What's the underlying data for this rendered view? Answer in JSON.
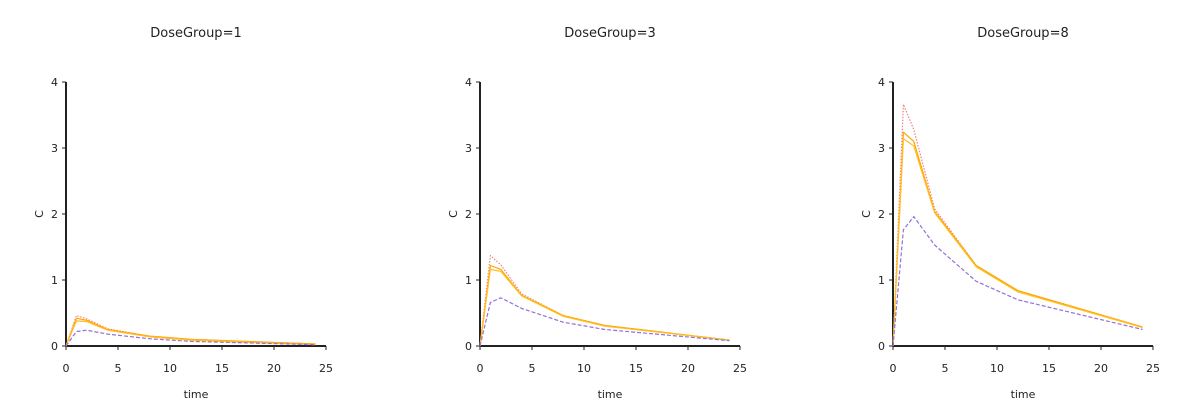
{
  "chart_data": [
    {
      "type": "line",
      "title": "DoseGroup=1",
      "xlabel": "time",
      "ylabel": "C",
      "xlim": [
        0,
        25
      ],
      "ylim": [
        0,
        4
      ],
      "xticks": [
        "0",
        "5",
        "10",
        "15",
        "20",
        "25"
      ],
      "yticks": [
        "0",
        "1",
        "2",
        "3",
        "4"
      ],
      "grid": false,
      "series": [
        {
          "color": "#f08080",
          "style": "dotted",
          "x": [
            0,
            1,
            2,
            4,
            8,
            12,
            24
          ],
          "y": [
            0,
            0.46,
            0.41,
            0.26,
            0.15,
            0.1,
            0.03
          ]
        },
        {
          "color": "#ffa500",
          "style": "solid",
          "x": [
            0,
            1,
            2,
            4,
            8,
            12,
            24
          ],
          "y": [
            0,
            0.42,
            0.39,
            0.25,
            0.15,
            0.1,
            0.03
          ]
        },
        {
          "color": "#ffc020",
          "style": "solid",
          "x": [
            0,
            1,
            2,
            4,
            8,
            12,
            24
          ],
          "y": [
            0,
            0.38,
            0.37,
            0.24,
            0.14,
            0.09,
            0.02
          ]
        },
        {
          "color": "#9370db",
          "style": "dashed",
          "x": [
            0,
            1,
            2,
            4,
            8,
            12,
            24
          ],
          "y": [
            0,
            0.22,
            0.24,
            0.18,
            0.11,
            0.07,
            0.02
          ]
        }
      ]
    },
    {
      "type": "line",
      "title": "DoseGroup=3",
      "xlabel": "time",
      "ylabel": "C",
      "xlim": [
        0,
        25
      ],
      "ylim": [
        0,
        4
      ],
      "xticks": [
        "0",
        "5",
        "10",
        "15",
        "20",
        "25"
      ],
      "yticks": [
        "0",
        "1",
        "2",
        "3",
        "4"
      ],
      "grid": false,
      "series": [
        {
          "color": "#f08080",
          "style": "dotted",
          "x": [
            0,
            1,
            2,
            4,
            8,
            12,
            24
          ],
          "y": [
            0,
            1.37,
            1.23,
            0.79,
            0.46,
            0.31,
            0.09
          ]
        },
        {
          "color": "#ffa500",
          "style": "solid",
          "x": [
            0,
            1,
            2,
            4,
            8,
            12,
            24
          ],
          "y": [
            0,
            1.22,
            1.16,
            0.77,
            0.46,
            0.31,
            0.09
          ]
        },
        {
          "color": "#ffc020",
          "style": "solid",
          "x": [
            0,
            1,
            2,
            4,
            8,
            12,
            24
          ],
          "y": [
            0,
            1.16,
            1.13,
            0.76,
            0.45,
            0.3,
            0.09
          ]
        },
        {
          "color": "#9370db",
          "style": "dashed",
          "x": [
            0,
            1,
            2,
            4,
            8,
            12,
            24
          ],
          "y": [
            0,
            0.66,
            0.73,
            0.57,
            0.36,
            0.25,
            0.08
          ]
        }
      ]
    },
    {
      "type": "line",
      "title": "DoseGroup=8",
      "xlabel": "time",
      "ylabel": "C",
      "xlim": [
        0,
        25
      ],
      "ylim": [
        0,
        4
      ],
      "xticks": [
        "0",
        "5",
        "10",
        "15",
        "20",
        "25"
      ],
      "yticks": [
        "0",
        "1",
        "2",
        "3",
        "4"
      ],
      "grid": false,
      "series": [
        {
          "color": "#f08080",
          "style": "dotted",
          "x": [
            0,
            1,
            2,
            4,
            8,
            12,
            24
          ],
          "y": [
            0,
            3.66,
            3.28,
            2.08,
            1.22,
            0.84,
            0.28
          ]
        },
        {
          "color": "#ffa500",
          "style": "solid",
          "x": [
            0,
            1,
            2,
            4,
            8,
            12,
            24
          ],
          "y": [
            0,
            3.24,
            3.1,
            2.04,
            1.22,
            0.84,
            0.29
          ]
        },
        {
          "color": "#ffc020",
          "style": "solid",
          "x": [
            0,
            1,
            2,
            4,
            8,
            12,
            24
          ],
          "y": [
            0,
            3.14,
            3.03,
            2.02,
            1.2,
            0.82,
            0.28
          ]
        },
        {
          "color": "#9370db",
          "style": "dashed",
          "x": [
            0,
            1,
            2,
            4,
            8,
            12,
            24
          ],
          "y": [
            0,
            1.76,
            1.96,
            1.53,
            0.98,
            0.7,
            0.25
          ]
        }
      ]
    }
  ]
}
